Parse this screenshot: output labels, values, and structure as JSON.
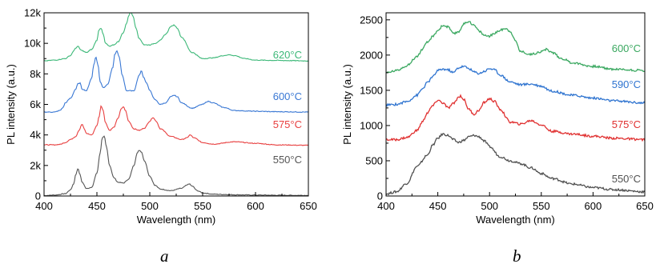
{
  "panel_letters": [
    "a",
    "b"
  ],
  "chart_data": [
    {
      "type": "line",
      "panel": "a",
      "xlabel": "Wavelength (nm)",
      "ylabel": "PL intensity (a.u.)",
      "xlim": [
        400,
        650
      ],
      "ylim": [
        0,
        12000
      ],
      "xticks": [
        400,
        450,
        500,
        550,
        600,
        650
      ],
      "yticks": [
        0,
        2000,
        4000,
        6000,
        8000,
        10000,
        12000
      ],
      "ytick_labels": [
        "0",
        "2k",
        "4k",
        "6k",
        "8k",
        "10k",
        "12k"
      ],
      "grid": false,
      "series": [
        {
          "name": "550°C",
          "color": "#555555",
          "x": [
            400,
            410,
            420,
            425,
            428,
            430,
            432,
            434,
            436,
            440,
            445,
            450,
            453,
            455,
            457,
            459,
            462,
            466,
            470,
            475,
            480,
            485,
            488,
            490,
            492,
            495,
            500,
            505,
            510,
            520,
            530,
            535,
            537,
            540,
            545,
            550,
            560,
            570,
            580,
            600,
            620,
            650
          ],
          "y": [
            30,
            60,
            150,
            400,
            800,
            1400,
            1800,
            1400,
            900,
            500,
            550,
            1500,
            2800,
            3800,
            3900,
            3200,
            2000,
            1200,
            900,
            850,
            1100,
            2000,
            2800,
            3000,
            2900,
            2300,
            1300,
            700,
            450,
            350,
            500,
            700,
            800,
            650,
            350,
            200,
            120,
            100,
            80,
            60,
            50,
            40
          ]
        },
        {
          "name": "575°C",
          "color": "#e84040",
          "x": [
            400,
            410,
            415,
            420,
            425,
            430,
            433,
            436,
            438,
            440,
            445,
            450,
            452,
            454,
            456,
            458,
            462,
            466,
            470,
            473,
            475,
            477,
            480,
            485,
            490,
            495,
            500,
            503,
            506,
            510,
            520,
            530,
            535,
            538,
            542,
            550,
            560,
            580,
            600,
            620,
            650
          ],
          "y": [
            3350,
            3350,
            3380,
            3500,
            3700,
            3900,
            4300,
            4700,
            4400,
            4100,
            4000,
            4600,
            5200,
            5900,
            5600,
            4800,
            4300,
            4500,
            5100,
            5700,
            5850,
            5600,
            4900,
            4400,
            4300,
            4450,
            4900,
            5150,
            4900,
            4400,
            3900,
            3700,
            3800,
            4000,
            3800,
            3500,
            3400,
            3550,
            3450,
            3350,
            3320
          ]
        },
        {
          "name": "600°C",
          "color": "#3a78d4",
          "x": [
            400,
            410,
            415,
            418,
            420,
            425,
            430,
            432,
            434,
            436,
            440,
            445,
            447,
            449,
            451,
            453,
            456,
            460,
            465,
            467,
            469,
            471,
            474,
            478,
            485,
            490,
            492,
            494,
            497,
            500,
            505,
            510,
            515,
            520,
            523,
            526,
            530,
            540,
            550,
            555,
            560,
            570,
            580,
            600,
            620,
            650
          ],
          "y": [
            5500,
            5500,
            5600,
            5800,
            6100,
            6400,
            7000,
            7350,
            7400,
            7000,
            6900,
            7700,
            8600,
            9100,
            8600,
            7500,
            7100,
            7300,
            8400,
            9300,
            9500,
            9100,
            7900,
            6900,
            6900,
            7900,
            8200,
            7800,
            7400,
            6900,
            6300,
            6000,
            6100,
            6500,
            6600,
            6500,
            6100,
            5750,
            6000,
            6200,
            6100,
            5800,
            5600,
            5550,
            5520,
            5500
          ]
        },
        {
          "name": "620°C",
          "color": "#3cb878",
          "x": [
            400,
            410,
            420,
            425,
            428,
            430,
            432,
            435,
            440,
            445,
            450,
            452,
            454,
            456,
            458,
            462,
            466,
            470,
            475,
            478,
            480,
            482,
            484,
            487,
            490,
            495,
            500,
            505,
            510,
            515,
            520,
            523,
            526,
            530,
            540,
            550,
            560,
            570,
            575,
            580,
            590,
            600,
            620,
            650
          ],
          "y": [
            8850,
            8900,
            9000,
            9200,
            9500,
            9700,
            9800,
            9550,
            9400,
            9600,
            10200,
            10900,
            11000,
            10600,
            10000,
            9800,
            9900,
            10100,
            10700,
            11300,
            11800,
            12100,
            11800,
            11000,
            10300,
            9900,
            9900,
            10000,
            10200,
            10600,
            11100,
            11200,
            11000,
            10400,
            9400,
            9000,
            9050,
            9200,
            9250,
            9200,
            9000,
            8900,
            8880,
            8850
          ]
        }
      ],
      "annotations": [
        "620°C",
        "600°C",
        "575°C",
        "550°C"
      ]
    },
    {
      "type": "line",
      "panel": "b",
      "xlabel": "Wavelength (nm)",
      "ylabel": "PL intensity (a.u.)",
      "xlim": [
        400,
        650
      ],
      "ylim": [
        0,
        2600
      ],
      "xticks": [
        400,
        450,
        500,
        550,
        600,
        650
      ],
      "yticks": [
        0,
        500,
        1000,
        1500,
        2000,
        2500
      ],
      "ytick_labels": [
        "0",
        "500",
        "1000",
        "1500",
        "2000",
        "2500"
      ],
      "grid": false,
      "series": [
        {
          "name": "550°C",
          "color": "#505050",
          "x": [
            400,
            410,
            420,
            430,
            440,
            445,
            450,
            455,
            460,
            465,
            470,
            475,
            480,
            485,
            490,
            495,
            500,
            510,
            520,
            530,
            540,
            550,
            560,
            580,
            600,
            620,
            650
          ],
          "y": [
            30,
            60,
            180,
            420,
            580,
            720,
            820,
            880,
            860,
            800,
            760,
            790,
            840,
            860,
            840,
            780,
            700,
            560,
            500,
            460,
            400,
            320,
            250,
            170,
            120,
            90,
            60
          ]
        },
        {
          "name": "575°C",
          "color": "#e03030",
          "x": [
            400,
            410,
            420,
            430,
            435,
            440,
            445,
            450,
            455,
            460,
            465,
            470,
            472,
            475,
            480,
            485,
            490,
            495,
            500,
            505,
            510,
            520,
            530,
            540,
            550,
            560,
            580,
            600,
            620,
            650
          ],
          "y": [
            800,
            800,
            830,
            930,
            1050,
            1180,
            1280,
            1360,
            1320,
            1250,
            1310,
            1400,
            1420,
            1370,
            1230,
            1160,
            1220,
            1330,
            1380,
            1340,
            1230,
            1050,
            1020,
            1070,
            1010,
            920,
            880,
            850,
            820,
            800
          ]
        },
        {
          "name": "590°C",
          "color": "#2f74d0",
          "x": [
            400,
            410,
            420,
            430,
            435,
            440,
            445,
            450,
            455,
            460,
            465,
            470,
            475,
            480,
            485,
            490,
            495,
            500,
            505,
            510,
            520,
            530,
            540,
            550,
            560,
            580,
            600,
            620,
            650
          ],
          "y": [
            1290,
            1300,
            1340,
            1430,
            1520,
            1610,
            1690,
            1780,
            1800,
            1790,
            1750,
            1820,
            1840,
            1810,
            1760,
            1740,
            1770,
            1810,
            1790,
            1720,
            1620,
            1580,
            1590,
            1560,
            1490,
            1430,
            1390,
            1350,
            1320
          ]
        },
        {
          "name": "600°C",
          "color": "#3aa860",
          "x": [
            400,
            410,
            420,
            430,
            435,
            440,
            445,
            450,
            455,
            460,
            465,
            470,
            475,
            480,
            485,
            490,
            495,
            500,
            505,
            510,
            515,
            520,
            525,
            530,
            540,
            550,
            555,
            560,
            570,
            580,
            600,
            620,
            650
          ],
          "y": [
            1750,
            1780,
            1850,
            1980,
            2080,
            2180,
            2260,
            2350,
            2420,
            2400,
            2300,
            2330,
            2440,
            2480,
            2420,
            2340,
            2280,
            2270,
            2310,
            2350,
            2380,
            2340,
            2200,
            2050,
            2010,
            2050,
            2080,
            2040,
            1950,
            1890,
            1840,
            1800,
            1780
          ]
        }
      ],
      "annotations": [
        "600°C",
        "590°C",
        "575°C",
        "550°C"
      ]
    }
  ]
}
